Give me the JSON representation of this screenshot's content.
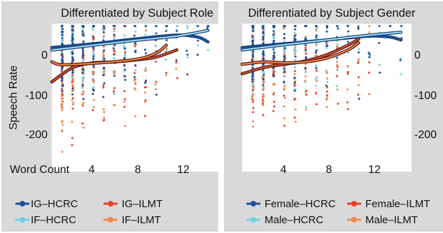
{
  "colors": {
    "panel_bg": "#d9d9d9",
    "plot_bg": "#ffffff",
    "dark_blue": "#1f4e9c",
    "light_blue": "#6fd3e6",
    "red": "#e8402a",
    "orange": "#f08a4b",
    "trend_dark": "#1c3f7a",
    "trend_light_fill": "#9fe3ee",
    "trend_red_fill": "#c9503a"
  },
  "chart_data": [
    {
      "type": "scatter",
      "title": "Differentiated by Subject Role",
      "xlabel": "Word Count",
      "ylabel": "Speech Rate",
      "xlim": [
        0,
        16
      ],
      "ylim": [
        -260,
        50
      ],
      "x_ticks": [
        "4",
        "8",
        "12"
      ],
      "y_ticks": [
        "0",
        "-100",
        "-200"
      ],
      "legend_position": "bottom",
      "series": [
        {
          "name": "IG–HCRC",
          "color_key": "dark_blue",
          "trend_x": [
            0,
            4,
            8,
            12,
            14,
            15
          ],
          "trend_y": [
            0,
            8,
            18,
            26,
            22,
            12
          ]
        },
        {
          "name": "IG–ILMT",
          "color_key": "red",
          "trend_x": [
            0,
            2,
            4,
            6,
            8,
            10,
            12
          ],
          "trend_y": [
            -72,
            -42,
            -32,
            -30,
            -26,
            -20,
            -5
          ]
        },
        {
          "name": "IF–HCRC",
          "color_key": "light_blue",
          "trend_x": [
            0,
            4,
            8,
            12,
            15
          ],
          "trend_y": [
            -5,
            5,
            15,
            24,
            36
          ]
        },
        {
          "name": "IF–ILMT",
          "color_key": "orange",
          "trend_x": [
            0,
            1,
            4,
            8,
            10,
            11
          ],
          "trend_y": [
            -30,
            -36,
            -33,
            -25,
            -12,
            5
          ]
        }
      ]
    },
    {
      "type": "scatter",
      "title": "Differentiated by Subject Gender",
      "xlabel": "",
      "ylabel": "",
      "xlim": [
        0,
        16
      ],
      "ylim": [
        -260,
        50
      ],
      "x_ticks": [
        "4",
        "8",
        "12"
      ],
      "y_ticks": [
        "0",
        "-100",
        "-200"
      ],
      "legend_position": "bottom",
      "series": [
        {
          "name": "Female–HCRC",
          "color_key": "dark_blue",
          "trend_x": [
            0,
            4,
            8,
            12,
            14,
            15
          ],
          "trend_y": [
            0,
            8,
            16,
            24,
            22,
            16
          ]
        },
        {
          "name": "Female–ILMT",
          "color_key": "red",
          "trend_x": [
            0,
            2,
            4,
            6,
            8,
            10,
            11
          ],
          "trend_y": [
            -55,
            -42,
            -35,
            -28,
            -15,
            5,
            18
          ]
        },
        {
          "name": "Male–HCRC",
          "color_key": "light_blue",
          "trend_x": [
            0,
            4,
            8,
            12,
            15
          ],
          "trend_y": [
            -5,
            6,
            16,
            26,
            32
          ]
        },
        {
          "name": "Male–ILMT",
          "color_key": "orange",
          "trend_x": [
            0,
            2,
            4,
            6,
            8,
            10,
            11
          ],
          "trend_y": [
            -35,
            -30,
            -32,
            -30,
            -22,
            -5,
            10
          ]
        }
      ]
    }
  ]
}
